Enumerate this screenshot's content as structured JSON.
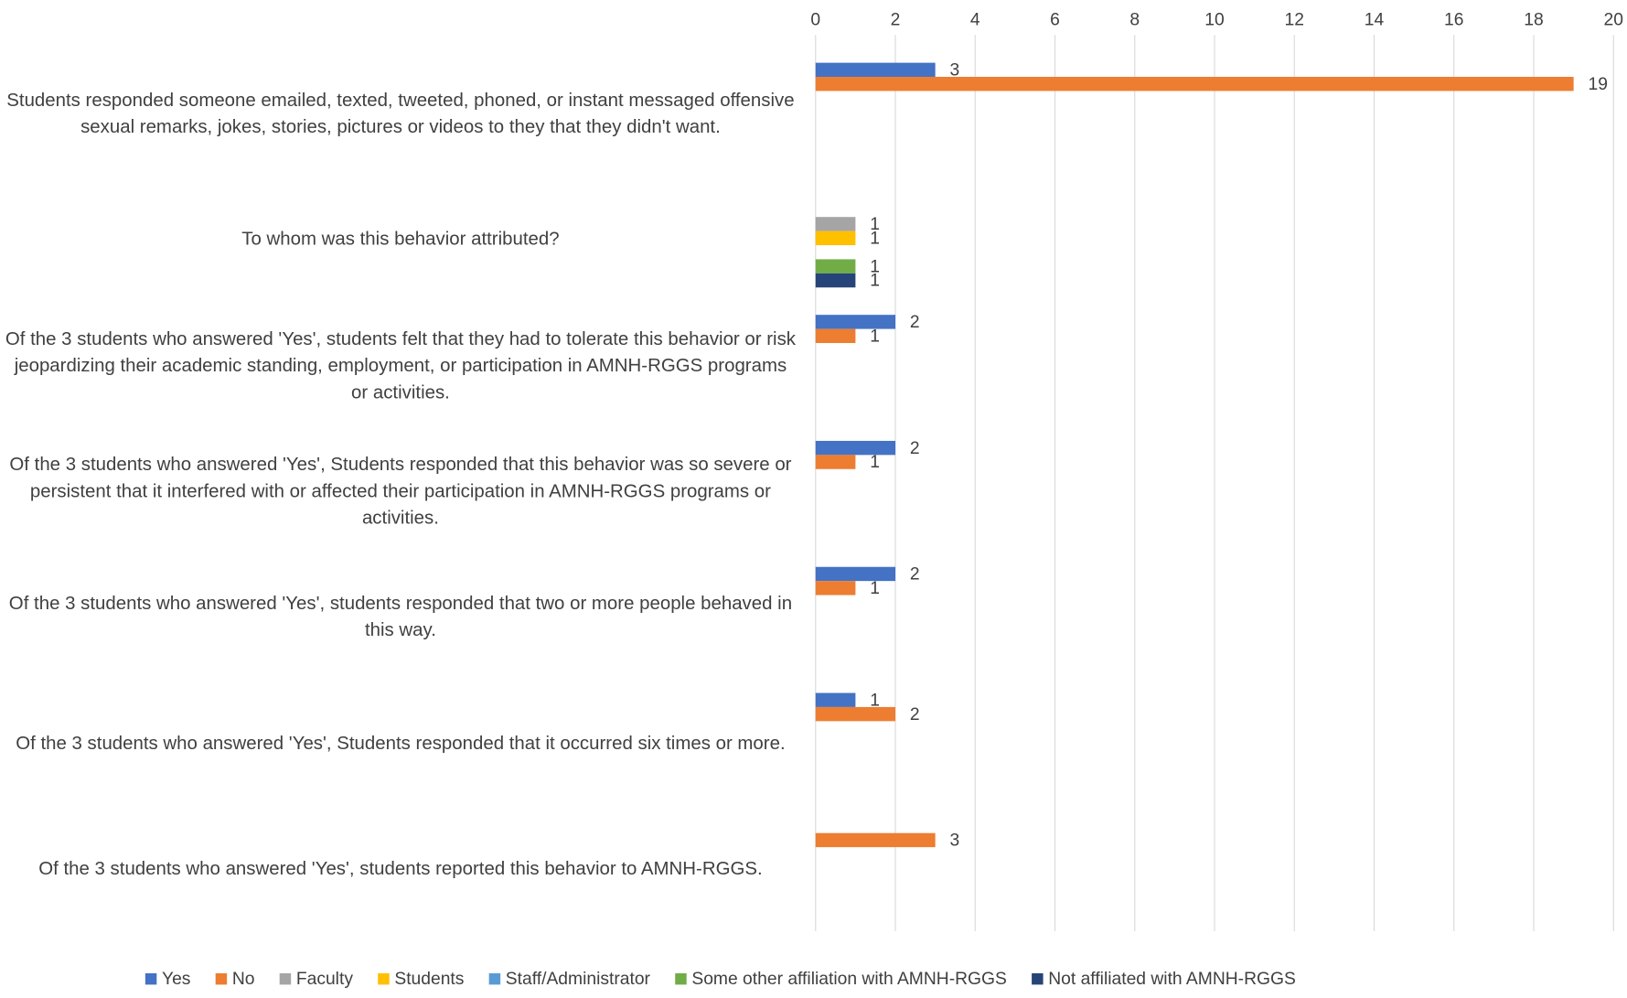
{
  "chart_data": {
    "type": "bar",
    "orientation": "horizontal",
    "categories": [
      "Students responded someone emailed, texted, tweeted, phoned, or instant messaged offensive sexual remarks, jokes, stories, pictures or videos to they that they didn't want.",
      "To whom was this behavior attributed?",
      "Of the 3 students who answered 'Yes', students felt that they had to tolerate this behavior or risk jeopardizing their academic standing, employment, or participation in AMNH-RGGS programs or activities.",
      "Of the 3 students who answered 'Yes', Students responded that this behavior was so severe or persistent that it interfered with or affected their participation in AMNH-RGGS programs or activities.",
      "Of the 3 students who answered 'Yes', students responded that two or more people behaved in this way.",
      "Of the 3 students who answered 'Yes', Students responded that it occurred six times or more.",
      "Of the 3 students who answered 'Yes', students reported this behavior to AMNH-RGGS."
    ],
    "series": [
      {
        "name": "Yes",
        "color": "#4472c4",
        "values": [
          3,
          null,
          2,
          2,
          2,
          1,
          null
        ]
      },
      {
        "name": "No",
        "color": "#ed7d31",
        "values": [
          19,
          null,
          1,
          1,
          1,
          2,
          3
        ]
      },
      {
        "name": "Faculty",
        "color": "#a5a5a5",
        "values": [
          null,
          1,
          null,
          null,
          null,
          null,
          null
        ]
      },
      {
        "name": "Students",
        "color": "#ffc000",
        "values": [
          null,
          1,
          null,
          null,
          null,
          null,
          null
        ]
      },
      {
        "name": "Staff/Administrator",
        "color": "#5b9bd5",
        "values": [
          null,
          null,
          null,
          null,
          null,
          null,
          null
        ]
      },
      {
        "name": "Some other affiliation with AMNH-RGGS",
        "color": "#70ad47",
        "values": [
          null,
          1,
          null,
          null,
          null,
          null,
          null
        ]
      },
      {
        "name": "Not affiliated with AMNH-RGGS",
        "color": "#264478",
        "values": [
          null,
          1,
          null,
          null,
          null,
          null,
          null
        ]
      }
    ],
    "xlim": [
      0,
      20
    ],
    "xticks": [
      0,
      2,
      4,
      6,
      8,
      10,
      12,
      14,
      16,
      18,
      20
    ],
    "grid": true,
    "legend": "bottom"
  }
}
